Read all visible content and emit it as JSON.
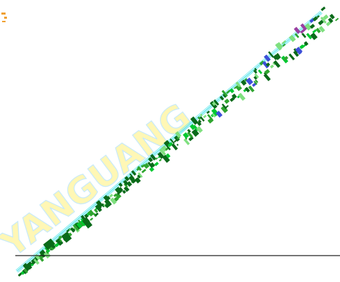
{
  "scene": {
    "background": "#ffffff",
    "description_free": true
  },
  "watermark": {
    "text": "YANGUANG",
    "fill_color": "#fff27a",
    "outline_color": "#9bd8f5"
  },
  "diagonal_artifact": {
    "colors": {
      "dark_green": "#0a6a1a",
      "mid_green": "#2fa52f",
      "light_green": "#7fe07f",
      "bright_green": "#00c830",
      "cyan_edge": "#68e8ee",
      "blue_accent": "#3d4fd8",
      "purple_accent": "#9a3fa0",
      "orange_accent": "#f0a030"
    }
  },
  "baseline_rule": {
    "color": "#222222"
  }
}
